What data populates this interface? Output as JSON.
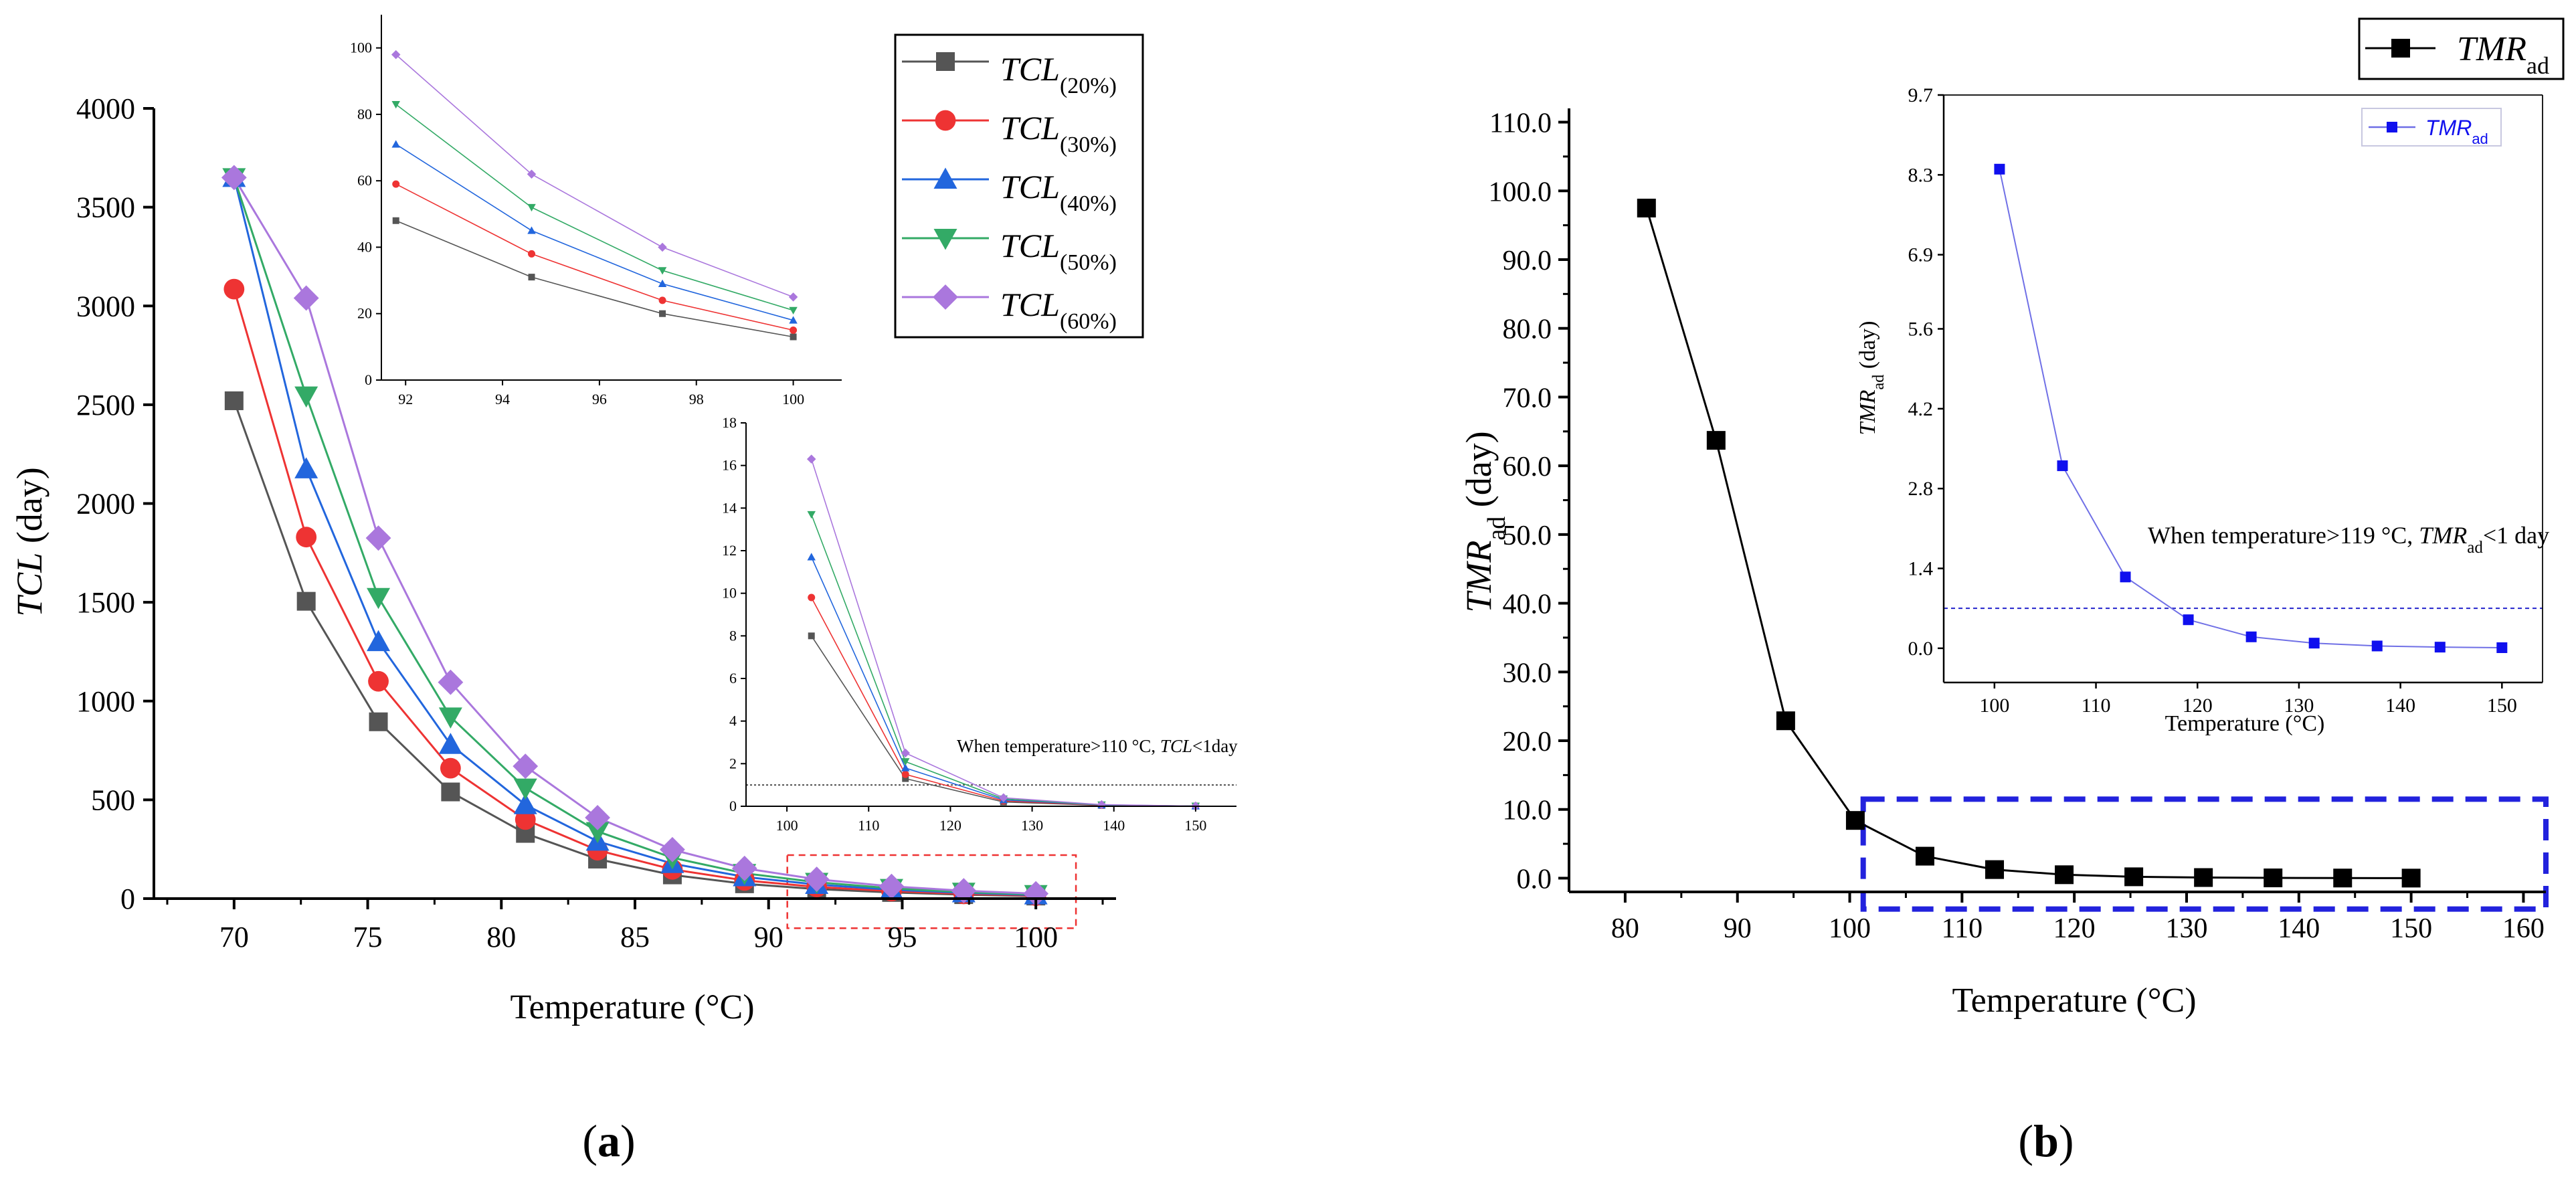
{
  "chart_data": [
    {
      "panel": "a",
      "type": "line",
      "ylabel_main": "TCL",
      "ylabel_unit": " (day)",
      "xlabel": "Temperature (°C)",
      "xlim": [
        67,
        103
      ],
      "ylim": [
        0,
        4000
      ],
      "xticks": [
        70,
        75,
        80,
        85,
        90,
        95,
        100
      ],
      "yticks": [
        0,
        500,
        1000,
        1500,
        2000,
        2500,
        3000,
        3500,
        4000
      ],
      "x": [
        70,
        72.7,
        75.4,
        78.1,
        80.9,
        83.6,
        86.4,
        89.1,
        91.8,
        94.6,
        97.3,
        100
      ],
      "series": [
        {
          "name": "TCL",
          "sub": "(20%)",
          "color": "#555555",
          "marker": "square",
          "values": [
            2520,
            1505,
            895,
            540,
            330,
            200,
            120,
            75,
            48,
            31,
            20,
            13
          ]
        },
        {
          "name": "TCL",
          "sub": "(30%)",
          "color": "#ee3333",
          "marker": "circle",
          "values": [
            3085,
            1830,
            1100,
            660,
            400,
            245,
            148,
            92,
            59,
            38,
            24,
            15
          ]
        },
        {
          "name": "TCL",
          "sub": "(40%)",
          "color": "#2266dd",
          "marker": "triangle-up",
          "values": [
            3650,
            2175,
            1300,
            780,
            475,
            290,
            177,
            110,
            71,
            45,
            29,
            18
          ]
        },
        {
          "name": "TCL",
          "sub": "(50%)",
          "color": "#33aa66",
          "marker": "triangle-down",
          "values": [
            3650,
            2545,
            1525,
            920,
            560,
            340,
            207,
            128,
            83,
            52,
            33,
            21
          ]
        },
        {
          "name": "TCL",
          "sub": "(60%)",
          "color": "#aa77dd",
          "marker": "diamond",
          "values": [
            3650,
            3040,
            1825,
            1095,
            670,
            410,
            248,
            153,
            98,
            62,
            40,
            25
          ]
        }
      ],
      "highlight_box": {
        "x": [
          90.7,
          101.5
        ],
        "y": [
          -150,
          220
        ],
        "color": "#ee3333"
      },
      "inset_top": {
        "xlim": [
          91.5,
          101
        ],
        "ylim": [
          0,
          110
        ],
        "xticks": [
          92,
          94,
          96,
          98,
          100
        ],
        "yticks": [
          0,
          20,
          40,
          60,
          80,
          100
        ],
        "x": [
          91.8,
          94.6,
          97.3,
          100
        ],
        "series_values": [
          [
            48,
            31,
            20,
            13
          ],
          [
            59,
            38,
            24,
            15
          ],
          [
            71,
            45,
            29,
            18
          ],
          [
            83,
            52,
            33,
            21
          ],
          [
            98,
            62,
            40,
            25
          ]
        ]
      },
      "inset_bottom": {
        "xlim": [
          95,
          155
        ],
        "ylim": [
          0,
          18
        ],
        "xticks": [
          100,
          110,
          120,
          130,
          140,
          150
        ],
        "yticks": [
          0,
          2,
          4,
          6,
          8,
          10,
          12,
          14,
          16,
          18
        ],
        "x": [
          103,
          114.5,
          126.5,
          138.5,
          150
        ],
        "series_values": [
          [
            8.0,
            1.3,
            0.2,
            0.04,
            0.01
          ],
          [
            9.8,
            1.5,
            0.25,
            0.05,
            0.01
          ],
          [
            11.7,
            1.8,
            0.3,
            0.06,
            0.01
          ],
          [
            13.7,
            2.1,
            0.35,
            0.07,
            0.01
          ],
          [
            16.3,
            2.5,
            0.4,
            0.08,
            0.01
          ]
        ],
        "threshold": 1,
        "annotation_prefix": "When temperature>110 °C, ",
        "annotation_italic": "TCL",
        "annotation_suffix": "<1day"
      },
      "panel_label": "a"
    },
    {
      "panel": "b",
      "type": "line",
      "ylabel_main": "TMR",
      "ylabel_sub": "ad",
      "ylabel_unit": " (day)",
      "xlabel": "Temperature (°C)",
      "xlim": [
        75,
        162
      ],
      "ylim": [
        -2,
        112
      ],
      "xticks": [
        80,
        90,
        100,
        110,
        120,
        130,
        140,
        150,
        160
      ],
      "yticks": [
        0.0,
        10.0,
        20.0,
        30.0,
        40.0,
        50.0,
        60.0,
        70.0,
        80.0,
        90.0,
        100.0,
        110.0
      ],
      "x": [
        81.9,
        88.1,
        94.3,
        100.5,
        106.7,
        112.9,
        119.1,
        125.3,
        131.5,
        137.7,
        143.9,
        150
      ],
      "values": [
        97.5,
        63.7,
        22.9,
        8.4,
        3.2,
        1.25,
        0.5,
        0.2,
        0.09,
        0.04,
        0.02,
        0.01
      ],
      "legend": {
        "name": "TMR",
        "sub": "ad"
      },
      "highlight_box": {
        "x": [
          101.2,
          162
        ],
        "y": [
          -4.5,
          11.5
        ],
        "color": "#2222dd"
      },
      "inset": {
        "xlim": [
          95,
          154
        ],
        "ylim": [
          -0.6,
          9.7
        ],
        "xticks": [
          100,
          110,
          120,
          130,
          140,
          150
        ],
        "yticks": [
          "0.0",
          "1.4",
          "2.8",
          "4.2",
          "5.6",
          "6.9",
          "8.3",
          "9.7"
        ],
        "ytick_values": [
          0,
          1.4,
          2.8,
          4.2,
          5.6,
          6.9,
          8.3,
          9.7
        ],
        "x": [
          100.5,
          106.7,
          112.9,
          119.1,
          125.3,
          131.5,
          137.7,
          143.9,
          150
        ],
        "values": [
          8.4,
          3.2,
          1.25,
          0.5,
          0.2,
          0.09,
          0.04,
          0.02,
          0.01
        ],
        "threshold": 0.7,
        "xlabel": "Temperature (°C)",
        "ylabel_main": "TMR",
        "ylabel_sub": "ad",
        "ylabel_unit": " (day)",
        "legend": {
          "name": "TMR",
          "sub": "ad"
        },
        "annotation_prefix": "When temperature>119 °C, ",
        "annotation_italic": "TMR",
        "annotation_sub": "ad",
        "annotation_suffix": "<1 day"
      },
      "panel_label": "b"
    }
  ]
}
